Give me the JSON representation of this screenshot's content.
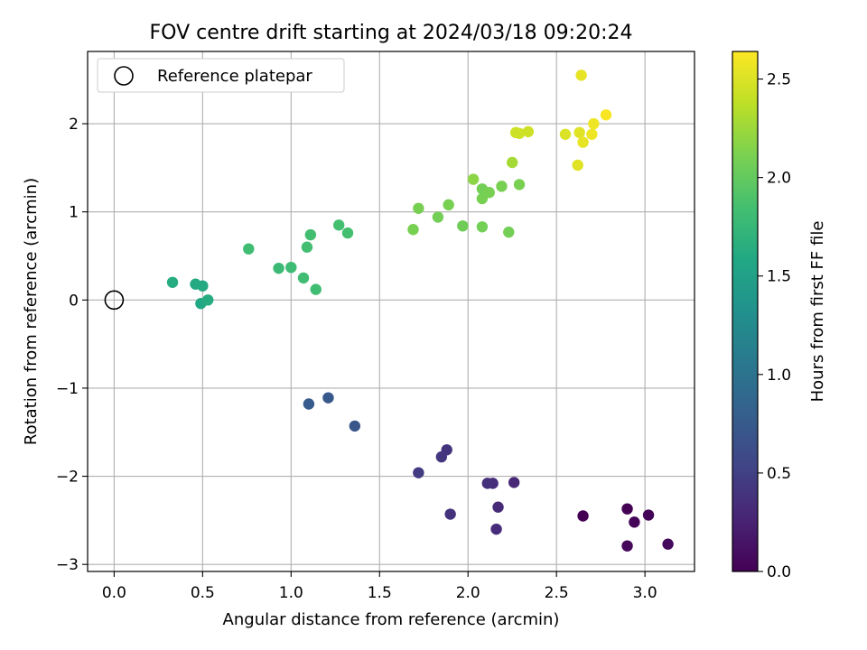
{
  "chart_data": {
    "type": "scatter",
    "title": "FOV centre drift starting at 2024/03/18 09:20:24",
    "xlabel": "Angular distance from reference (arcmin)",
    "ylabel": "Rotation from reference (arcmin)",
    "xlim": [
      -0.15,
      3.28
    ],
    "ylim": [
      -3.08,
      2.82
    ],
    "xticks": [
      0.0,
      0.5,
      1.0,
      1.5,
      2.0,
      2.5,
      3.0
    ],
    "xtick_labels": [
      "0.0",
      "0.5",
      "1.0",
      "1.5",
      "2.0",
      "2.5",
      "3.0"
    ],
    "yticks": [
      -3,
      -2,
      -1,
      0,
      1,
      2
    ],
    "ytick_labels": [
      "−3",
      "−2",
      "−1",
      "0",
      "1",
      "2"
    ],
    "grid": true,
    "legend": {
      "placement": "top-left",
      "entries": [
        {
          "label": "Reference platepar",
          "marker": "open-circle",
          "x": 0.0,
          "y": 0.0
        }
      ]
    },
    "colorbar": {
      "label": "Hours from first FF file",
      "colormap": "viridis",
      "range": [
        0.0,
        2.64
      ],
      "ticks": [
        0.0,
        0.5,
        1.0,
        1.5,
        2.0,
        2.5
      ],
      "tick_labels": [
        "0.0",
        "0.5",
        "1.0",
        "1.5",
        "2.0",
        "2.5"
      ]
    },
    "points": [
      {
        "x": 2.65,
        "y": -2.45,
        "h": 0.0
      },
      {
        "x": 2.9,
        "y": -2.37,
        "h": 0.0
      },
      {
        "x": 2.94,
        "y": -2.52,
        "h": 0.02
      },
      {
        "x": 3.02,
        "y": -2.44,
        "h": 0.03
      },
      {
        "x": 2.9,
        "y": -2.79,
        "h": 0.05
      },
      {
        "x": 3.13,
        "y": -2.77,
        "h": 0.07
      },
      {
        "x": 2.26,
        "y": -2.07,
        "h": 0.3
      },
      {
        "x": 2.17,
        "y": -2.35,
        "h": 0.32
      },
      {
        "x": 2.16,
        "y": -2.6,
        "h": 0.33
      },
      {
        "x": 2.14,
        "y": -2.08,
        "h": 0.35
      },
      {
        "x": 2.11,
        "y": -2.08,
        "h": 0.36
      },
      {
        "x": 1.9,
        "y": -2.43,
        "h": 0.38
      },
      {
        "x": 1.88,
        "y": -1.7,
        "h": 0.4
      },
      {
        "x": 1.85,
        "y": -1.78,
        "h": 0.42
      },
      {
        "x": 1.72,
        "y": -1.96,
        "h": 0.45
      },
      {
        "x": 1.36,
        "y": -1.43,
        "h": 0.7
      },
      {
        "x": 1.21,
        "y": -1.11,
        "h": 0.73
      },
      {
        "x": 1.1,
        "y": -1.18,
        "h": 0.75
      },
      {
        "x": 0.33,
        "y": 0.2,
        "h": 1.62
      },
      {
        "x": 0.46,
        "y": 0.18,
        "h": 1.6
      },
      {
        "x": 0.5,
        "y": 0.16,
        "h": 1.6
      },
      {
        "x": 0.49,
        "y": -0.04,
        "h": 1.58
      },
      {
        "x": 0.53,
        "y": 0.0,
        "h": 1.62
      },
      {
        "x": 0.76,
        "y": 0.58,
        "h": 1.82
      },
      {
        "x": 0.93,
        "y": 0.36,
        "h": 1.78
      },
      {
        "x": 1.0,
        "y": 0.37,
        "h": 1.8
      },
      {
        "x": 1.07,
        "y": 0.25,
        "h": 1.82
      },
      {
        "x": 1.09,
        "y": 0.6,
        "h": 1.84
      },
      {
        "x": 1.11,
        "y": 0.74,
        "h": 1.84
      },
      {
        "x": 1.14,
        "y": 0.12,
        "h": 1.82
      },
      {
        "x": 1.27,
        "y": 0.85,
        "h": 1.85
      },
      {
        "x": 1.32,
        "y": 0.76,
        "h": 1.85
      },
      {
        "x": 1.69,
        "y": 0.8,
        "h": 2.1
      },
      {
        "x": 1.72,
        "y": 1.04,
        "h": 2.1
      },
      {
        "x": 1.83,
        "y": 0.94,
        "h": 2.08
      },
      {
        "x": 1.89,
        "y": 1.08,
        "h": 2.1
      },
      {
        "x": 1.97,
        "y": 0.84,
        "h": 2.06
      },
      {
        "x": 2.03,
        "y": 1.37,
        "h": 2.18
      },
      {
        "x": 2.08,
        "y": 1.26,
        "h": 2.08
      },
      {
        "x": 2.08,
        "y": 1.15,
        "h": 2.1
      },
      {
        "x": 2.08,
        "y": 0.83,
        "h": 2.08
      },
      {
        "x": 2.12,
        "y": 1.22,
        "h": 2.1
      },
      {
        "x": 2.19,
        "y": 1.29,
        "h": 2.1
      },
      {
        "x": 2.23,
        "y": 0.77,
        "h": 2.08
      },
      {
        "x": 2.25,
        "y": 1.56,
        "h": 2.28
      },
      {
        "x": 2.27,
        "y": 1.9,
        "h": 2.44
      },
      {
        "x": 2.29,
        "y": 1.89,
        "h": 2.44
      },
      {
        "x": 2.29,
        "y": 1.31,
        "h": 2.1
      },
      {
        "x": 2.34,
        "y": 1.91,
        "h": 2.44
      },
      {
        "x": 2.55,
        "y": 1.88,
        "h": 2.5
      },
      {
        "x": 2.62,
        "y": 1.53,
        "h": 2.52
      },
      {
        "x": 2.63,
        "y": 1.9,
        "h": 2.52
      },
      {
        "x": 2.64,
        "y": 2.55,
        "h": 2.55
      },
      {
        "x": 2.65,
        "y": 1.79,
        "h": 2.55
      },
      {
        "x": 2.7,
        "y": 1.88,
        "h": 2.58
      },
      {
        "x": 2.71,
        "y": 2.0,
        "h": 2.58
      },
      {
        "x": 2.78,
        "y": 2.1,
        "h": 2.62
      }
    ]
  }
}
